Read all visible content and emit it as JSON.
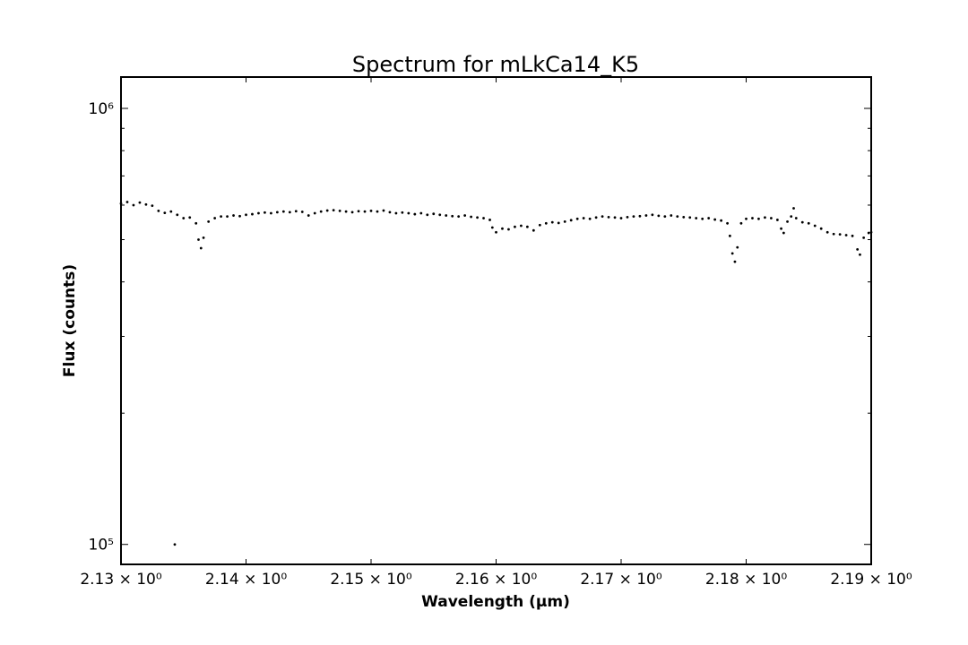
{
  "chart_data": {
    "type": "scatter",
    "title": "Spectrum for mLkCa14_K5",
    "xlabel": "Wavelength (μm)",
    "ylabel": "Flux (counts)",
    "xlim": [
      2.13,
      2.19
    ],
    "ylim": [
      90000,
      1180000
    ],
    "yscale": "log",
    "grid": false,
    "x_ticks": [
      2.13,
      2.14,
      2.15,
      2.16,
      2.17,
      2.18,
      2.19
    ],
    "x_tick_labels": [
      "2.13 × 10⁰",
      "2.14 × 10⁰",
      "2.15 × 10⁰",
      "2.16 × 10⁰",
      "2.17 × 10⁰",
      "2.18 × 10⁰",
      "2.19 × 10⁰"
    ],
    "y_major_ticks": [
      100000,
      1000000
    ],
    "y_tick_labels": [
      "10⁵",
      "10⁶"
    ],
    "y_minor_ticks": [
      200000,
      300000,
      400000,
      500000,
      600000,
      700000,
      800000,
      900000
    ],
    "marker_color": "#000000",
    "series": [
      {
        "points": [
          [
            2.13,
            605000
          ],
          [
            2.1305,
            610000
          ],
          [
            2.131,
            600000
          ],
          [
            2.1315,
            608000
          ],
          [
            2.132,
            602000
          ],
          [
            2.1325,
            598000
          ],
          [
            2.133,
            582000
          ],
          [
            2.1335,
            576000
          ],
          [
            2.134,
            580000
          ],
          [
            2.1345,
            570000
          ],
          [
            2.135,
            560000
          ],
          [
            2.1355,
            562000
          ],
          [
            2.136,
            545000
          ],
          [
            2.1362,
            500000
          ],
          [
            2.1364,
            478000
          ],
          [
            2.1366,
            505000
          ],
          [
            2.137,
            550000
          ],
          [
            2.1375,
            560000
          ],
          [
            2.138,
            565000
          ],
          [
            2.1385,
            565000
          ],
          [
            2.139,
            568000
          ],
          [
            2.1395,
            566000
          ],
          [
            2.14,
            570000
          ],
          [
            2.1405,
            572000
          ],
          [
            2.141,
            575000
          ],
          [
            2.1415,
            577000
          ],
          [
            2.142,
            575000
          ],
          [
            2.1425,
            578000
          ],
          [
            2.143,
            580000
          ],
          [
            2.1435,
            578000
          ],
          [
            2.144,
            581000
          ],
          [
            2.1445,
            579000
          ],
          [
            2.145,
            568000
          ],
          [
            2.1455,
            575000
          ],
          [
            2.146,
            580000
          ],
          [
            2.1465,
            583000
          ],
          [
            2.147,
            584000
          ],
          [
            2.1475,
            582000
          ],
          [
            2.148,
            580000
          ],
          [
            2.1485,
            578000
          ],
          [
            2.149,
            581000
          ],
          [
            2.1495,
            580000
          ],
          [
            2.15,
            582000
          ],
          [
            2.1505,
            580000
          ],
          [
            2.151,
            583000
          ],
          [
            2.1515,
            578000
          ],
          [
            2.152,
            575000
          ],
          [
            2.1525,
            577000
          ],
          [
            2.153,
            575000
          ],
          [
            2.1535,
            572000
          ],
          [
            2.154,
            575000
          ],
          [
            2.1545,
            570000
          ],
          [
            2.155,
            573000
          ],
          [
            2.1555,
            570000
          ],
          [
            2.156,
            568000
          ],
          [
            2.1565,
            566000
          ],
          [
            2.157,
            565000
          ],
          [
            2.1575,
            568000
          ],
          [
            2.158,
            564000
          ],
          [
            2.1585,
            562000
          ],
          [
            2.159,
            560000
          ],
          [
            2.1595,
            555000
          ],
          [
            2.1597,
            533000
          ],
          [
            2.16,
            520000
          ],
          [
            2.1605,
            530000
          ],
          [
            2.161,
            528000
          ],
          [
            2.1615,
            535000
          ],
          [
            2.162,
            538000
          ],
          [
            2.1625,
            535000
          ],
          [
            2.163,
            525000
          ],
          [
            2.1635,
            540000
          ],
          [
            2.164,
            545000
          ],
          [
            2.1645,
            548000
          ],
          [
            2.165,
            546000
          ],
          [
            2.1655,
            550000
          ],
          [
            2.166,
            554000
          ],
          [
            2.1665,
            558000
          ],
          [
            2.167,
            560000
          ],
          [
            2.1675,
            558000
          ],
          [
            2.168,
            562000
          ],
          [
            2.1685,
            565000
          ],
          [
            2.169,
            563000
          ],
          [
            2.1695,
            562000
          ],
          [
            2.17,
            560000
          ],
          [
            2.1705,
            563000
          ],
          [
            2.171,
            565000
          ],
          [
            2.1715,
            566000
          ],
          [
            2.172,
            568000
          ],
          [
            2.1725,
            570000
          ],
          [
            2.173,
            567000
          ],
          [
            2.1735,
            565000
          ],
          [
            2.174,
            568000
          ],
          [
            2.1745,
            565000
          ],
          [
            2.175,
            563000
          ],
          [
            2.1755,
            562000
          ],
          [
            2.176,
            560000
          ],
          [
            2.1765,
            558000
          ],
          [
            2.177,
            560000
          ],
          [
            2.1775,
            556000
          ],
          [
            2.178,
            553000
          ],
          [
            2.1785,
            545000
          ],
          [
            2.1787,
            510000
          ],
          [
            2.1789,
            465000
          ],
          [
            2.1791,
            445000
          ],
          [
            2.1793,
            480000
          ],
          [
            2.1796,
            545000
          ],
          [
            2.18,
            558000
          ],
          [
            2.1805,
            560000
          ],
          [
            2.181,
            558000
          ],
          [
            2.1815,
            562000
          ],
          [
            2.182,
            560000
          ],
          [
            2.1825,
            555000
          ],
          [
            2.1828,
            530000
          ],
          [
            2.183,
            518000
          ],
          [
            2.1833,
            550000
          ],
          [
            2.1836,
            565000
          ],
          [
            2.1838,
            590000
          ],
          [
            2.184,
            560000
          ],
          [
            2.1845,
            548000
          ],
          [
            2.185,
            545000
          ],
          [
            2.1855,
            538000
          ],
          [
            2.186,
            530000
          ],
          [
            2.1865,
            520000
          ],
          [
            2.187,
            515000
          ],
          [
            2.1875,
            514000
          ],
          [
            2.188,
            512000
          ],
          [
            2.1885,
            510000
          ],
          [
            2.1889,
            475000
          ],
          [
            2.1891,
            462000
          ],
          [
            2.1894,
            505000
          ],
          [
            2.1898,
            518000
          ],
          [
            2.19,
            520000
          ],
          [
            2.1343,
            100000
          ]
        ]
      }
    ]
  }
}
